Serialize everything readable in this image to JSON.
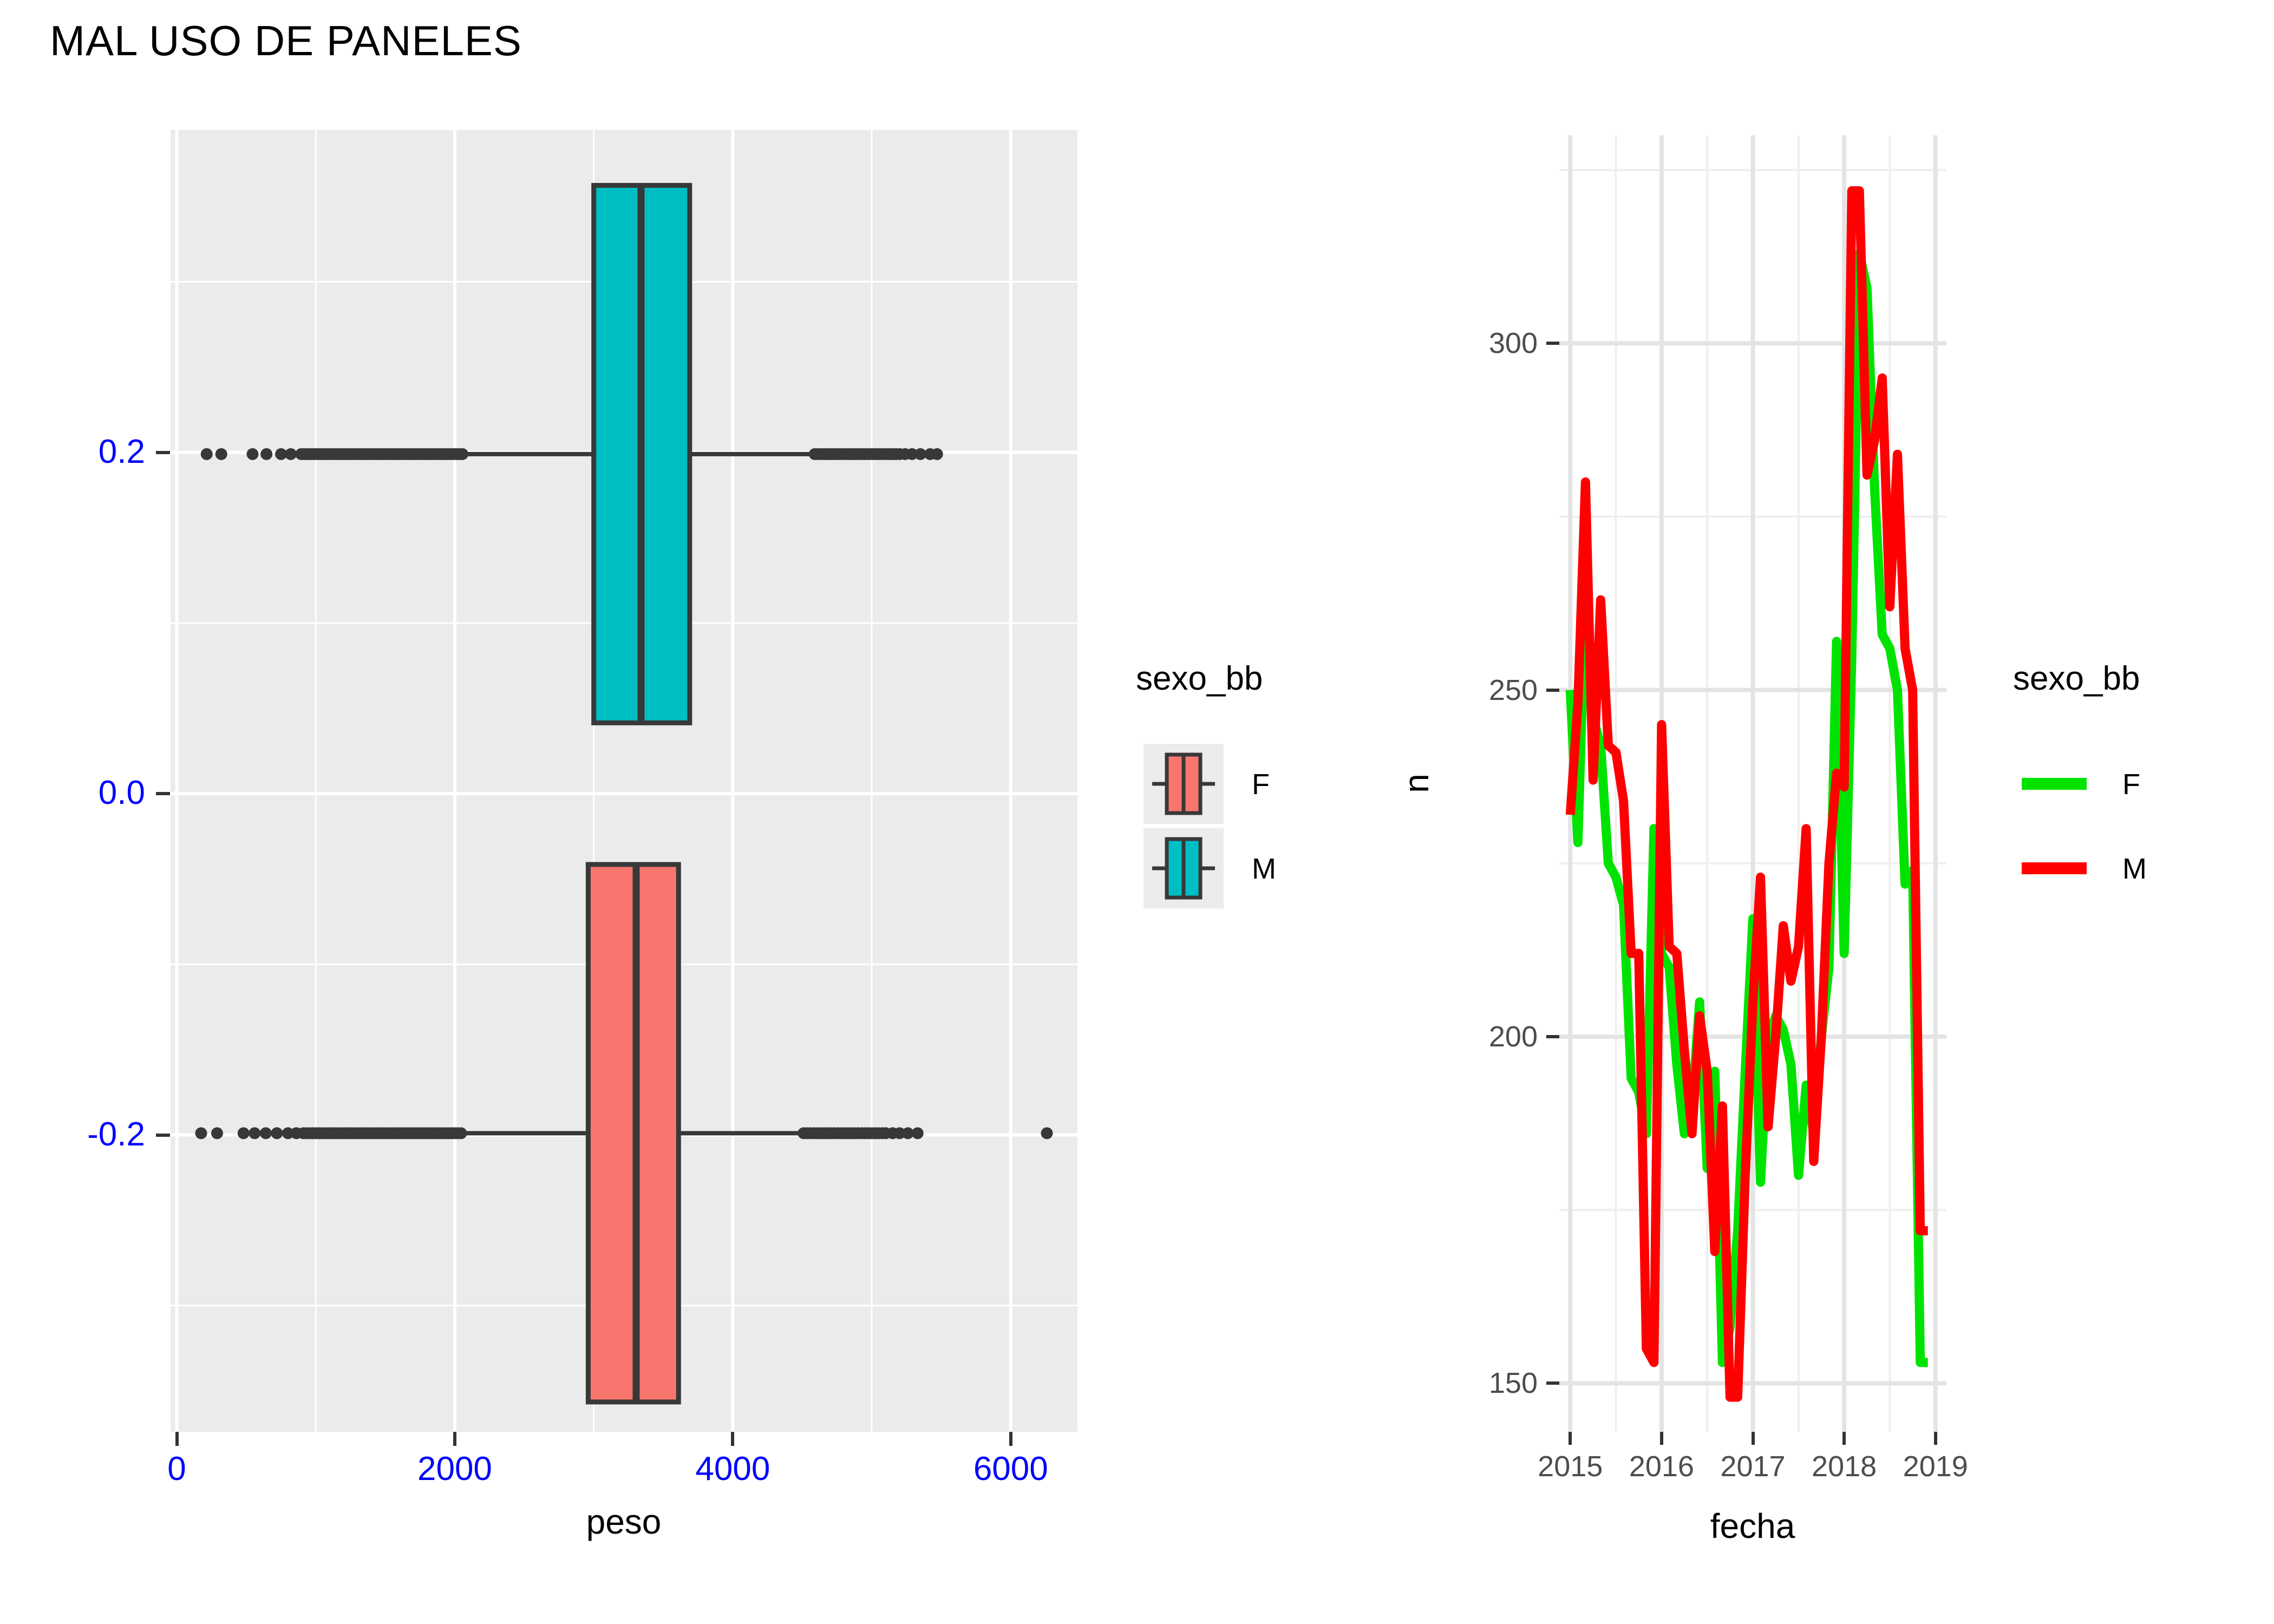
{
  "title": "MAL USO DE PANELES",
  "colors": {
    "panel_gray": "#EBEBEB",
    "grid_white_major": "#FFFFFF",
    "grid_white_minor": "#FFFFFF",
    "grid_gray_major": "#E4E4E4",
    "grid_gray_minor": "#EFEFEF",
    "box_outline": "#383838",
    "axis_text_blue": "#0000FF",
    "axis_text_gray": "#4D4D4D",
    "tick_mark": "#333333",
    "legend_key_bg": "#ECECEC",
    "salmon": "#F8766D",
    "teal": "#00BFC4",
    "line_green": "#00E300",
    "line_red": "#FF0000"
  },
  "chart_data": [
    {
      "type": "boxplot",
      "orientation": "horizontal",
      "xlabel": "peso",
      "x_ticks": [
        0,
        2000,
        4000,
        6000
      ],
      "x_tick_labels": [
        "0",
        "2000",
        "4000",
        "6000"
      ],
      "y_ticks": [
        0.2,
        0.0,
        -0.2
      ],
      "y_tick_labels": [
        "0.2",
        "0.0",
        "-0.2"
      ],
      "x_range": [
        -45,
        6480
      ],
      "y_range": [
        -0.374,
        0.389
      ],
      "grid": true,
      "legend": {
        "title": "sexo_bb",
        "position": "right",
        "items": [
          {
            "label": "F",
            "color": "#F8766D"
          },
          {
            "label": "M",
            "color": "#00BFC4"
          }
        ]
      },
      "series": [
        {
          "name": "M",
          "fill": "#00BFC4",
          "box_top": 0.3565,
          "box_bottom": 0.0415,
          "q1": 3000,
          "median": 3340,
          "q3": 3690,
          "whisker_min": 2060,
          "whisker_max": 4590,
          "outliers_low_points": [
            215,
            320,
            545,
            645,
            750,
            820
          ],
          "outliers_low_band": {
            "min": 895,
            "max": 2055,
            "n": 52
          },
          "outliers_high_points": [
            5240,
            5290,
            5350,
            5420,
            5470
          ],
          "outliers_high_band": {
            "min": 4590,
            "max": 5200,
            "n": 26
          }
        },
        {
          "name": "F",
          "fill": "#F8766D",
          "box_top": -0.0415,
          "box_bottom": -0.3565,
          "q1": 2960,
          "median": 3305,
          "q3": 3610,
          "whisker_min": 2050,
          "whisker_max": 4510,
          "outliers_low_points": [
            175,
            290,
            480,
            560,
            640,
            720,
            800,
            860
          ],
          "outliers_low_band": {
            "min": 910,
            "max": 2045,
            "n": 50
          },
          "outliers_high_points": [
            5150,
            5200,
            5260,
            5330,
            6260
          ],
          "outliers_high_band": {
            "min": 4510,
            "max": 5100,
            "n": 25
          }
        }
      ]
    },
    {
      "type": "line",
      "xlabel": "fecha",
      "ylabel": "n",
      "x_ticks": [
        2015,
        2016,
        2017,
        2018,
        2019
      ],
      "x_tick_labels": [
        "2015",
        "2016",
        "2017",
        "2018",
        "2019"
      ],
      "y_ticks": [
        150,
        200,
        250,
        300
      ],
      "y_tick_labels": [
        "150",
        "200",
        "250",
        "300"
      ],
      "x_range": [
        2014.88,
        2019.12
      ],
      "y_range": [
        143,
        330
      ],
      "grid": true,
      "legend": {
        "title": "sexo_bb",
        "position": "right",
        "items": [
          {
            "label": "F",
            "color": "#00E300"
          },
          {
            "label": "M",
            "color": "#FF0000"
          }
        ]
      },
      "months": [
        "2015-01",
        "2015-02",
        "2015-03",
        "2015-04",
        "2015-05",
        "2015-06",
        "2015-07",
        "2015-08",
        "2015-09",
        "2015-10",
        "2015-11",
        "2015-12",
        "2016-01",
        "2016-02",
        "2016-03",
        "2016-04",
        "2016-05",
        "2016-06",
        "2016-07",
        "2016-08",
        "2016-09",
        "2016-10",
        "2016-11",
        "2016-12",
        "2017-01",
        "2017-02",
        "2017-03",
        "2017-04",
        "2017-05",
        "2017-06",
        "2017-07",
        "2017-08",
        "2017-09",
        "2017-10",
        "2017-11",
        "2017-12",
        "2018-01",
        "2018-02",
        "2018-03",
        "2018-04",
        "2018-05",
        "2018-06",
        "2018-07",
        "2018-08",
        "2018-09",
        "2018-10",
        "2018-11",
        "2018-12"
      ],
      "series": [
        {
          "name": "F",
          "color": "#00E300",
          "values": [
            250,
            228,
            264,
            246,
            242,
            225,
            223,
            219,
            194,
            192,
            186,
            230,
            212,
            210,
            196,
            186,
            190,
            205,
            181,
            195,
            153,
            158,
            172,
            195,
            217,
            179,
            200,
            203,
            201,
            196,
            180,
            193,
            186,
            200,
            210,
            257,
            212,
            255,
            313,
            308,
            279,
            258,
            256,
            250,
            222,
            224,
            153,
            153
          ]
        },
        {
          "name": "M",
          "color": "#FF0000",
          "values": [
            232,
            248,
            280,
            237,
            263,
            242,
            241,
            234,
            212,
            212,
            155,
            153,
            245,
            213,
            212,
            198,
            186,
            203,
            195,
            169,
            190,
            148,
            148,
            180,
            205,
            223,
            187,
            200,
            216,
            208,
            213,
            230,
            182,
            200,
            225,
            238,
            236,
            322,
            322,
            281,
            286,
            295,
            262,
            284,
            256,
            250,
            172,
            172
          ]
        }
      ]
    }
  ]
}
